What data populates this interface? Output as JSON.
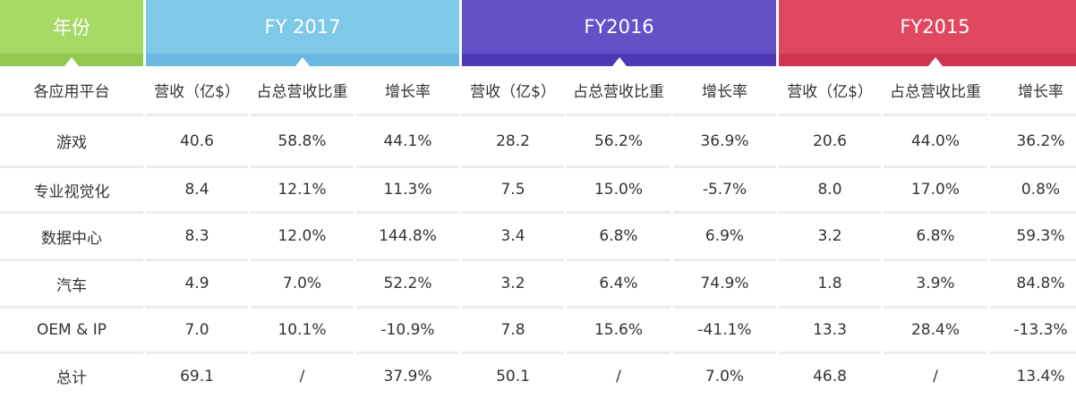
{
  "colors": {
    "year_header": "#a6d965",
    "fy2017_header": "#7ec8e8",
    "fy2016_header": "#6650c8",
    "fy2015_header": "#e04860"
  },
  "header": {
    "year_label": "年份",
    "fy2017": "FY 2017",
    "fy2016": "FY2016",
    "fy2015": "FY2015"
  },
  "subheader": {
    "platform_label": "各应用平台",
    "columns": [
      "营收（亿$）",
      "占总营收比重",
      "增长率",
      "营收（亿$）",
      "占总营收比重",
      "增长率",
      "营收（亿$）",
      "占总营收比重",
      "增长率"
    ]
  },
  "chart_data": {
    "type": "table",
    "columns": [
      "各应用平台",
      "FY 2017 营收（亿$）",
      "FY 2017 占总营收比重",
      "FY 2017 增长率",
      "FY2016 营收（亿$）",
      "FY2016 占总营收比重",
      "FY2016 增长率",
      "FY2015 营收（亿$）",
      "FY2015 占总营收比重",
      "FY2015 增长率"
    ],
    "rows": [
      [
        "游戏",
        "40.6",
        "58.8%",
        "44.1%",
        "28.2",
        "56.2%",
        "36.9%",
        "20.6",
        "44.0%",
        "36.2%"
      ],
      [
        "专业视觉化",
        "8.4",
        "12.1%",
        "11.3%",
        "7.5",
        "15.0%",
        "-5.7%",
        "8.0",
        "17.0%",
        "0.8%"
      ],
      [
        "数据中心",
        "8.3",
        "12.0%",
        "144.8%",
        "3.4",
        "6.8%",
        "6.9%",
        "3.2",
        "6.8%",
        "59.3%"
      ],
      [
        "汽车",
        "4.9",
        "7.0%",
        "52.2%",
        "3.2",
        "6.4%",
        "74.9%",
        "1.8",
        "3.9%",
        "84.8%"
      ],
      [
        "OEM & IP",
        "7.0",
        "10.1%",
        "-10.9%",
        "7.8",
        "15.6%",
        "-41.1%",
        "13.3",
        "28.4%",
        "-13.3%"
      ],
      [
        "总计",
        "69.1",
        "/",
        "37.9%",
        "50.1",
        "/",
        "7.0%",
        "46.8",
        "/",
        "13.4%"
      ]
    ]
  }
}
